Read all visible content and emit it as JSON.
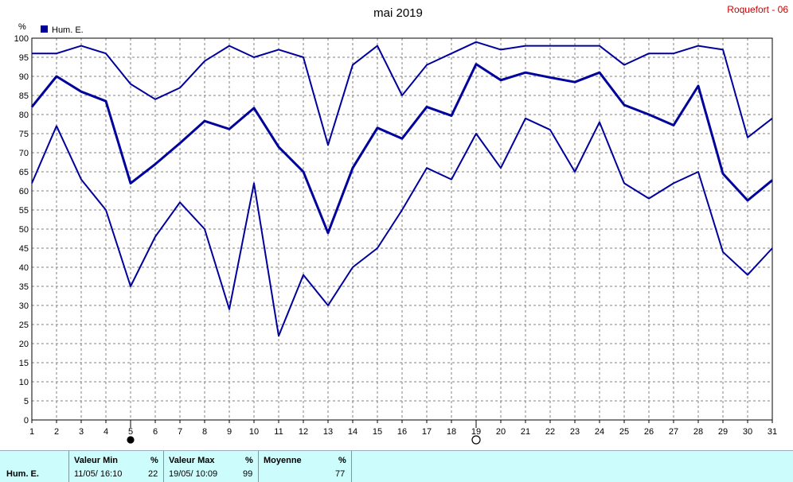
{
  "station": "Roquefort - 06",
  "chart_data": {
    "type": "line",
    "title": "mai 2019",
    "ylabel": "%",
    "ylim": [
      0,
      100
    ],
    "yticks": [
      0,
      5,
      10,
      15,
      20,
      25,
      30,
      35,
      40,
      45,
      50,
      55,
      60,
      65,
      70,
      75,
      80,
      85,
      90,
      95,
      100
    ],
    "x": [
      1,
      2,
      3,
      4,
      5,
      6,
      7,
      8,
      9,
      10,
      11,
      12,
      13,
      14,
      15,
      16,
      17,
      18,
      19,
      20,
      21,
      22,
      23,
      24,
      25,
      26,
      27,
      28,
      29,
      30,
      31
    ],
    "grid": true,
    "legend": [
      {
        "label": "Hum. E.",
        "color": "#00009c"
      }
    ],
    "series": [
      {
        "role": "max",
        "values": [
          96,
          96,
          98,
          96,
          88,
          84,
          87,
          94,
          98,
          95,
          97,
          95,
          72,
          93,
          98,
          85,
          93,
          96,
          99,
          97,
          98,
          98,
          98,
          98,
          93,
          96,
          96,
          98,
          97,
          74,
          79
        ]
      },
      {
        "role": "mean",
        "values": [
          82,
          90,
          86,
          83.5,
          62,
          67,
          72.5,
          78.3,
          76.2,
          81.7,
          71.5,
          65,
          49,
          66,
          76.5,
          73.7,
          82,
          79.7,
          93.2,
          89,
          91,
          89.7,
          88.5,
          91,
          82.5,
          80,
          77.2,
          87.5,
          64.5,
          57.5,
          62.8
        ]
      },
      {
        "role": "min",
        "values": [
          62,
          77,
          63,
          55,
          35,
          48,
          57,
          50,
          29,
          62,
          22,
          38,
          30,
          40,
          45,
          55,
          66,
          63,
          75,
          66,
          79,
          76,
          65,
          78,
          62,
          58,
          62,
          65,
          44,
          38,
          45
        ]
      }
    ],
    "markers": [
      {
        "x": 5,
        "symbol": "filled-circle"
      },
      {
        "x": 19,
        "symbol": "open-circle"
      }
    ],
    "line_color": "#00009c"
  },
  "stats": {
    "series_label": "Hum. E.",
    "min": {
      "header": "Valeur Min",
      "unit": "%",
      "when": "11/05/ 16:10",
      "value": "22"
    },
    "max": {
      "header": "Valeur Max",
      "unit": "%",
      "when": "19/05/ 10:09",
      "value": "99"
    },
    "mean": {
      "header": "Moyenne",
      "unit": "%",
      "value": "77"
    }
  }
}
